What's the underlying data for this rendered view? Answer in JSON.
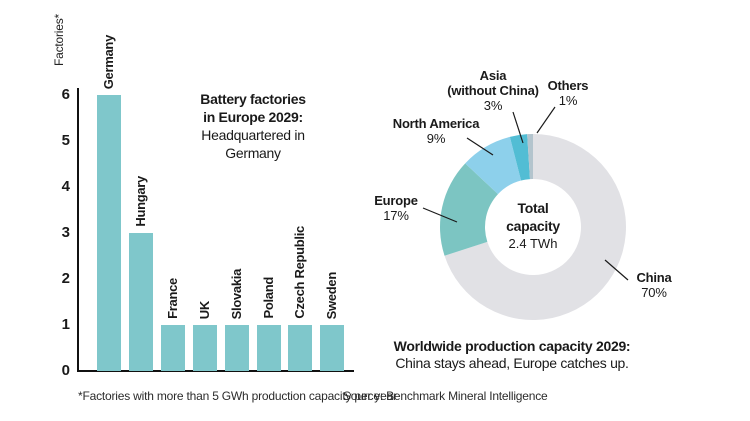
{
  "footnote": "*Factories with more than 5 GWh production capacity per year",
  "source": "Source: Benchmark Mineral Intelligence",
  "chart_data": [
    {
      "type": "bar",
      "title_bold": [
        "Battery factories",
        "in Europe 2029:"
      ],
      "title_regular": [
        "Headquartered in",
        "Germany"
      ],
      "ylabel": "Factories*",
      "categories": [
        "Germany",
        "Hungary",
        "France",
        "UK",
        "Slovakia",
        "Poland",
        "Czech Republic",
        "Sweden"
      ],
      "values": [
        6,
        3,
        1,
        1,
        1,
        1,
        1,
        1
      ],
      "ylim": [
        0,
        6
      ],
      "yticks": [
        0,
        1,
        2,
        3,
        4,
        5,
        6
      ],
      "bar_color": "#7fc7cb",
      "grid": false
    },
    {
      "type": "pie",
      "subtype": "donut",
      "segments": [
        {
          "name": "China",
          "pct": 70,
          "pct_label": "70%",
          "color": "#e1e1e5"
        },
        {
          "name": "Europe",
          "pct": 17,
          "pct_label": "17%",
          "color": "#7cc5c2"
        },
        {
          "name": "North America",
          "pct": 9,
          "pct_label": "9%",
          "color": "#8dd0eb"
        },
        {
          "name": "Asia (without China)",
          "pct": 3,
          "pct_label": "3%",
          "color": "#52bdd4",
          "label_lines": [
            "Asia",
            "(without China)"
          ]
        },
        {
          "name": "Others",
          "pct": 1,
          "pct_label": "1%",
          "color": "#b3c4cd"
        }
      ],
      "center_label": {
        "line1": "Total",
        "line2": "capacity",
        "line3": "2.4 TWh"
      },
      "caption_bold": "Worldwide production capacity 2029:",
      "caption_regular": "China stays ahead, Europe catches up.",
      "legend": "none"
    }
  ]
}
